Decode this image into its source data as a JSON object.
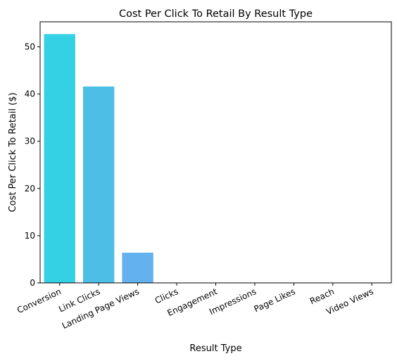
{
  "chart_data": {
    "type": "bar",
    "title": "Cost Per Click To Retail By Result Type",
    "xlabel": "Result Type",
    "ylabel": "Cost Per Click To Retail ($)",
    "categories": [
      "Conversion",
      "Link Clicks",
      "Landing Page Views",
      "Clicks",
      "Engagement",
      "Impressions",
      "Page Likes",
      "Reach",
      "Video Views"
    ],
    "values": [
      52.7,
      41.6,
      6.4,
      0,
      0,
      0,
      0,
      0,
      0
    ],
    "ylim": [
      0,
      55.3
    ],
    "yticks": [
      0,
      10,
      20,
      30,
      40,
      50
    ],
    "bar_colors": [
      "#33d1e3",
      "#4dbfe6",
      "#63b1ef",
      "#6fa4f2",
      "#7a97f5",
      "#858af7",
      "#917dfa",
      "#9c70fc",
      "#a763ff"
    ],
    "grid": false,
    "legend": "none"
  }
}
